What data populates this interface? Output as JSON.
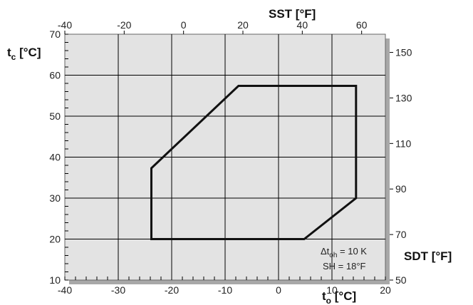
{
  "chart_data": {
    "type": "line",
    "title": "",
    "xlabel": {
      "main": "t",
      "sub": "o",
      "unit": " [°C]"
    },
    "ylabel": {
      "main": "t",
      "sub": "c",
      "unit": " [°C]"
    },
    "x2label": "SST [°F]",
    "y2label": "SDT [°F]",
    "xlim": [
      -40,
      20
    ],
    "ylim": [
      10,
      70
    ],
    "x_ticks": [
      -40,
      -30,
      -20,
      -10,
      0,
      10,
      20
    ],
    "y_ticks": [
      10,
      20,
      30,
      40,
      50,
      60,
      70
    ],
    "x2_ticks": [
      -40,
      -20,
      0,
      20,
      40,
      60
    ],
    "y2_ticks": [
      50,
      70,
      90,
      110,
      130,
      150
    ],
    "grid": true,
    "series": [
      {
        "type": "polygon",
        "x": [
          -23.8,
          -7.5,
          14.5,
          14.5,
          4.8,
          -23.8
        ],
        "y": [
          37.3,
          57.4,
          57.4,
          30.0,
          20.0,
          20.0
        ]
      }
    ],
    "annotation": {
      "line1": {
        "prefix": "Δt",
        "sub": "oh",
        "suffix": " = 10 K"
      },
      "line2": "SH = 18°F"
    },
    "colors": {
      "plot_bg": "#e3e3e3",
      "grid": "#000000",
      "envelope": "#111111",
      "shadow": "#a8a8a8"
    }
  }
}
